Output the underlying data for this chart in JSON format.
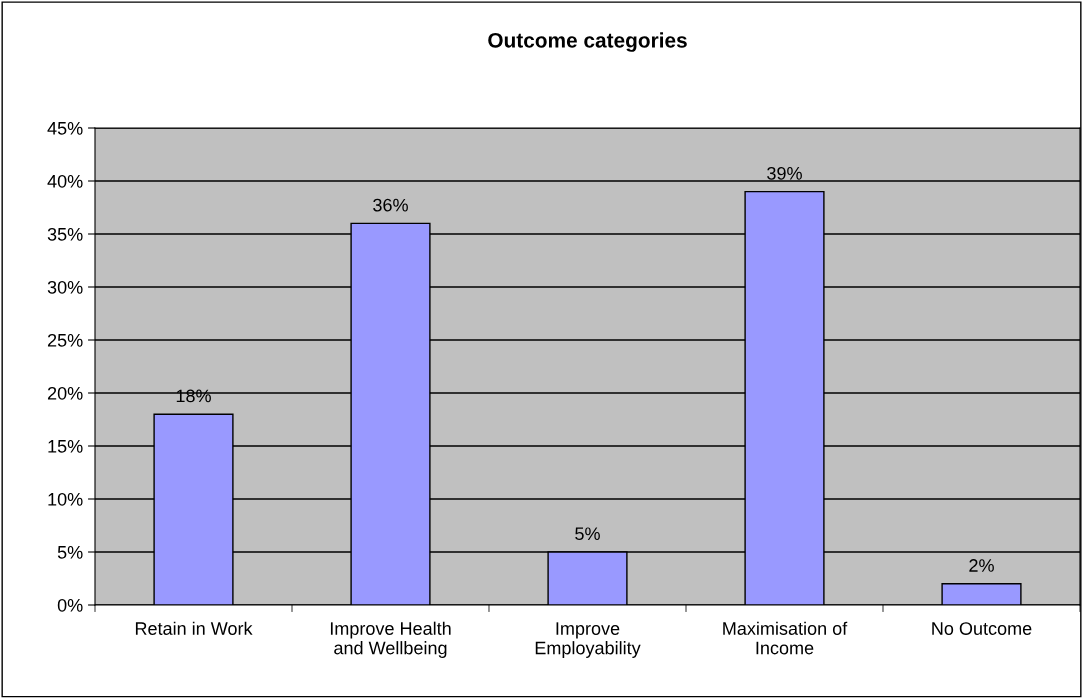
{
  "chart_data": {
    "type": "bar",
    "title": "Outcome categories",
    "categories": [
      "Retain in Work",
      "Improve Health\nand Wellbeing",
      "Improve\nEmployability",
      "Maximisation of\nIncome",
      "No Outcome"
    ],
    "values": [
      18,
      36,
      5,
      39,
      2
    ],
    "value_labels": [
      "18%",
      "36%",
      "5%",
      "39%",
      "2%"
    ],
    "color": "#9999ff",
    "ylim": [
      0,
      45
    ],
    "yticks": [
      {
        "value": 0,
        "label": "0%"
      },
      {
        "value": 5,
        "label": "5%"
      },
      {
        "value": 10,
        "label": "10%"
      },
      {
        "value": 15,
        "label": "15%"
      },
      {
        "value": 20,
        "label": "20%"
      },
      {
        "value": 25,
        "label": "25%"
      },
      {
        "value": 30,
        "label": "30%"
      },
      {
        "value": 35,
        "label": "35%"
      },
      {
        "value": 40,
        "label": "40%"
      },
      {
        "value": 45,
        "label": "45%"
      }
    ],
    "grid": "y",
    "legend": false
  }
}
